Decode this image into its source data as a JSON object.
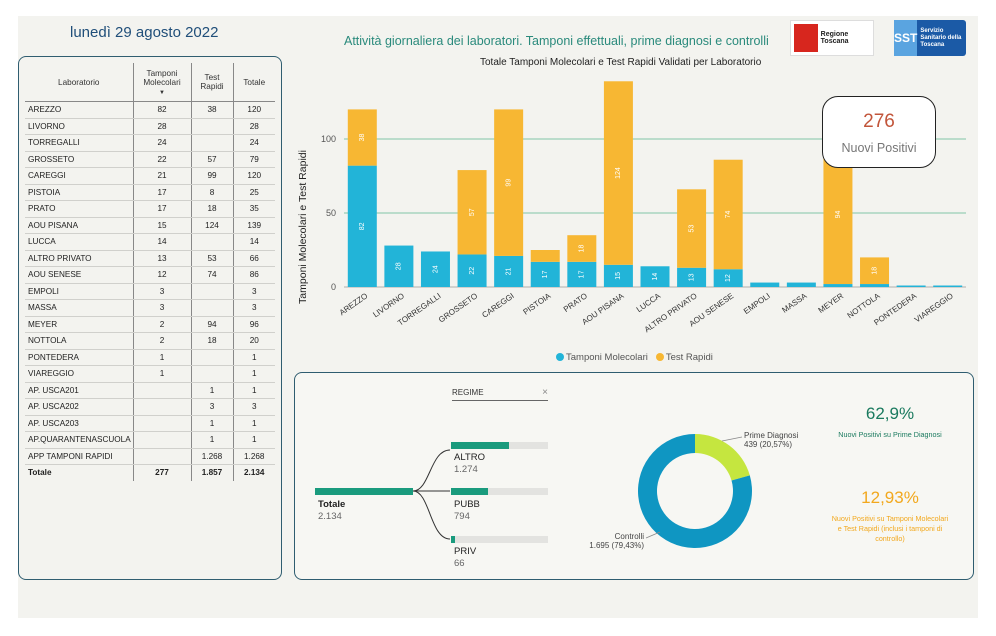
{
  "header": {
    "date": "lunedì 29 agosto 2022",
    "title": "Attività giornaliera dei laboratori. Tamponi effettuali, prime diagnosi e controlli",
    "logo_regione": "Regione Toscana",
    "logo_sst_mark": "SST",
    "logo_sst_text": "Servizio Sanitario della Toscana"
  },
  "table": {
    "columns": [
      "Laboratorio",
      "Tamponi Molecolari",
      "Test Rapidi",
      "Totale"
    ],
    "rows": [
      [
        "AREZZO",
        "82",
        "38",
        "120"
      ],
      [
        "LIVORNO",
        "28",
        "",
        "28"
      ],
      [
        "TORREGALLI",
        "24",
        "",
        "24"
      ],
      [
        "GROSSETO",
        "22",
        "57",
        "79"
      ],
      [
        "CAREGGI",
        "21",
        "99",
        "120"
      ],
      [
        "PISTOIA",
        "17",
        "8",
        "25"
      ],
      [
        "PRATO",
        "17",
        "18",
        "35"
      ],
      [
        "AOU PISANA",
        "15",
        "124",
        "139"
      ],
      [
        "LUCCA",
        "14",
        "",
        "14"
      ],
      [
        "ALTRO PRIVATO",
        "13",
        "53",
        "66"
      ],
      [
        "AOU SENESE",
        "12",
        "74",
        "86"
      ],
      [
        "EMPOLI",
        "3",
        "",
        "3"
      ],
      [
        "MASSA",
        "3",
        "",
        "3"
      ],
      [
        "MEYER",
        "2",
        "94",
        "96"
      ],
      [
        "NOTTOLA",
        "2",
        "18",
        "20"
      ],
      [
        "PONTEDERA",
        "1",
        "",
        "1"
      ],
      [
        "VIAREGGIO",
        "1",
        "",
        "1"
      ],
      [
        "AP. USCA201",
        "",
        "1",
        "1"
      ],
      [
        "AP. USCA202",
        "",
        "3",
        "3"
      ],
      [
        "AP. USCA203",
        "",
        "1",
        "1"
      ],
      [
        "AP.QUARANTENASCUOLA",
        "",
        "1",
        "1"
      ],
      [
        "APP TAMPONI RAPIDI",
        "",
        "1.268",
        "1.268"
      ]
    ],
    "total": [
      "Totale",
      "277",
      "1.857",
      "2.134"
    ]
  },
  "chart_data": {
    "type": "bar",
    "title": "Totale Tamponi Molecolari e Test Rapidi Validati per Laboratorio",
    "ylabel": "Tamponi Molecolari e Test Rapidi",
    "ylim": [
      0,
      150
    ],
    "yticks": [
      "0",
      "50",
      "100"
    ],
    "categories": [
      "AREZZO",
      "LIVORNO",
      "TORREGALLI",
      "GROSSETO",
      "CAREGGI",
      "PISTOIA",
      "PRATO",
      "AOU PISANA",
      "LUCCA",
      "ALTRO PRIVATO",
      "AOU SENESE",
      "EMPOLI",
      "MASSA",
      "MEYER",
      "NOTTOLA",
      "PONTEDERA",
      "VIAREGGIO"
    ],
    "series": [
      {
        "name": "Tamponi Molecolari",
        "color": "#22b4d8",
        "values": [
          82,
          28,
          24,
          22,
          21,
          17,
          17,
          15,
          14,
          13,
          12,
          3,
          3,
          2,
          2,
          1,
          1
        ]
      },
      {
        "name": "Test Rapidi",
        "color": "#f7b733",
        "values": [
          38,
          0,
          0,
          57,
          99,
          8,
          18,
          124,
          0,
          53,
          74,
          0,
          0,
          94,
          18,
          0,
          0
        ]
      }
    ],
    "stacked": true,
    "legend_position": "bottom"
  },
  "callout": {
    "value": "276",
    "label": "Nuovi Positivi"
  },
  "regime": {
    "title": "REGIME",
    "clear": "×",
    "root": {
      "label": "Totale",
      "value": "2.134",
      "fraction": 1.0
    },
    "children": [
      {
        "label": "ALTRO",
        "value": "1.274",
        "fraction": 0.597
      },
      {
        "label": "PUBB",
        "value": "794",
        "fraction": 0.372
      },
      {
        "label": "PRIV",
        "value": "66",
        "fraction": 0.031
      }
    ]
  },
  "donut": {
    "segments": [
      {
        "label": "Prime Diagnosi",
        "value": "439 (20,57%)",
        "fraction": 0.2057,
        "color": "#c5e63f"
      },
      {
        "label": "Controlli",
        "value": "1.695 (79,43%)",
        "fraction": 0.7943,
        "color": "#0f96c2"
      }
    ]
  },
  "kpis": [
    {
      "value": "62,9%",
      "label": "Nuovi Positivi su Prime Diagnosi",
      "color": "#1a7a5e"
    },
    {
      "value": "12,93%",
      "label": "Nuovi Positivi su Tamponi Molecolari e Test Rapidi (inclusi i tamponi di controllo)",
      "color": "#f2a81d"
    }
  ]
}
